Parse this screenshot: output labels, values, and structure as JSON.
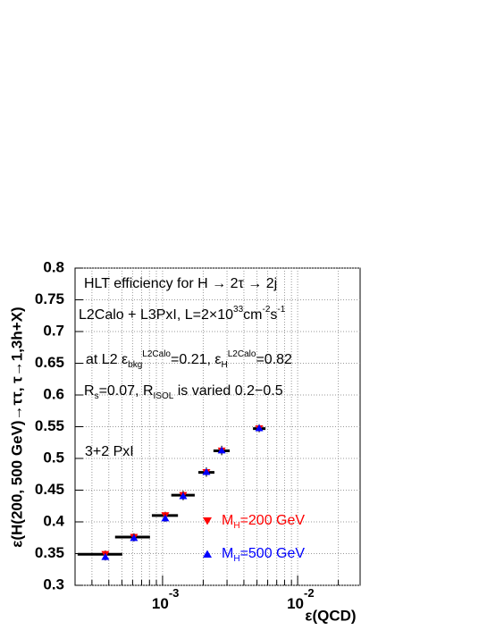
{
  "chart_data": {
    "type": "scatter",
    "xlabel": "ε(QCD)",
    "ylabel": "ε(H(200, 500 GeV)→ττ, τ→1,3h+X)",
    "log_x": true,
    "grid": true,
    "xlim": [
      0.000225,
      0.029
    ],
    "ylim": [
      0.3,
      0.8
    ],
    "xticks": [
      {
        "value": 0.001,
        "label": "10",
        "exponent": "-3"
      },
      {
        "value": 0.01,
        "label": "10",
        "exponent": "-2"
      }
    ],
    "xminorticks": [
      0.0003,
      0.0004,
      0.0005,
      0.0006,
      0.0007,
      0.0008,
      0.0009,
      0.002,
      0.003,
      0.004,
      0.005,
      0.006,
      0.007,
      0.008,
      0.009,
      0.02
    ],
    "yticks": [
      0.3,
      0.35,
      0.4,
      0.45,
      0.5,
      0.55,
      0.6,
      0.65,
      0.7,
      0.75,
      0.8
    ],
    "x": [
      0.000377,
      0.000614,
      0.001047,
      0.00142,
      0.00211,
      0.00274,
      0.00519
    ],
    "xlow": [
      0.000235,
      0.000445,
      0.000833,
      0.00116,
      0.00184,
      0.00238,
      0.00467
    ],
    "xhigh": [
      0.000503,
      0.000807,
      0.0013,
      0.00173,
      0.00242,
      0.00314,
      0.00578
    ],
    "yerr": [
      0.006,
      0.006,
      0.006,
      0.007,
      0.007,
      0.007,
      0.006
    ],
    "series": [
      {
        "name": [
          "M",
          {
            "text": "H",
            "pos": "sub"
          },
          "=200 GeV"
        ],
        "color": "#ff0000",
        "marker": "triangle-down",
        "values": [
          0.349,
          0.376,
          0.41,
          0.442,
          0.478,
          0.512,
          0.547
        ]
      },
      {
        "name": [
          "M",
          {
            "text": "H",
            "pos": "sub"
          },
          "=500 GeV"
        ],
        "color": "#0000ff",
        "marker": "triangle-up",
        "values": [
          0.345,
          0.375,
          0.406,
          0.441,
          0.479,
          0.513,
          0.548
        ]
      }
    ],
    "annotations": [
      [
        "HLT efficiency for H → 2τ → 2j"
      ],
      [
        "L2Calo + L3PxI, L=2×10",
        {
          "text": "33",
          "pos": "sup"
        },
        "cm",
        {
          "text": "-2",
          "pos": "sup"
        },
        "s",
        {
          "text": "-1",
          "pos": "sup"
        }
      ],
      [
        "at L2 ε",
        {
          "text": "bkg",
          "pos": "sub"
        },
        {
          "text": "L2Calo",
          "pos": "sup"
        },
        "=0.21, ε",
        {
          "text": "H",
          "pos": "sub"
        },
        {
          "text": "L2Calo",
          "pos": "sup"
        },
        "=0.82"
      ],
      [
        "R",
        {
          "text": "s",
          "pos": "sub"
        },
        "=0.07, R",
        {
          "text": "ISOL",
          "pos": "sub"
        },
        " is varied 0.2−0.5"
      ],
      [
        "3+2 PxI"
      ]
    ]
  }
}
